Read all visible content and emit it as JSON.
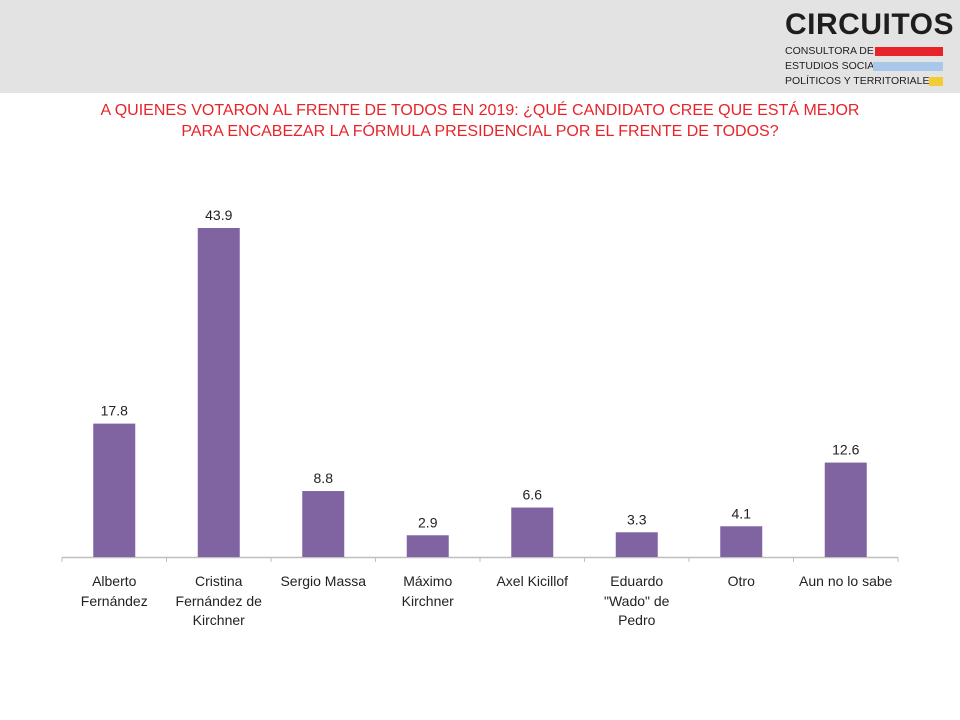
{
  "header": {
    "brand_name": "CIRCUITOS",
    "tagline_lines": [
      "CONSULTORA DE",
      "ESTUDIOS SOCIALES,",
      "POLÍTICOS Y TERRITORIALES"
    ]
  },
  "colors": {
    "bar": "#8064a2",
    "title": "#e8232a",
    "header_bg": "#e3e3e3",
    "stripe_red": "#e8232a",
    "stripe_blue": "#a8c8ea",
    "stripe_yellow": "#f2cc35",
    "axis": "#bfbfbf"
  },
  "chart_data": {
    "type": "bar",
    "title_lines": [
      "A QUIENES VOTARON AL FRENTE DE TODOS EN 2019: ¿QUÉ CANDIDATO CREE QUE ESTÁ MEJOR",
      "PARA ENCABEZAR LA FÓRMULA PRESIDENCIAL POR EL FRENTE DE TODOS?"
    ],
    "categories": [
      [
        "Alberto",
        "Fernández"
      ],
      [
        "Cristina",
        "Fernández de",
        "Kirchner"
      ],
      [
        "Sergio Massa"
      ],
      [
        "Máximo",
        "Kirchner"
      ],
      [
        "Axel Kicillof"
      ],
      [
        "Eduardo",
        "\"Wado\" de",
        "Pedro"
      ],
      [
        "Otro"
      ],
      [
        "Aun no lo sabe"
      ]
    ],
    "values": [
      17.8,
      43.9,
      8.8,
      2.9,
      6.6,
      3.3,
      4.1,
      12.6
    ],
    "value_labels": [
      "17.8",
      "43.9",
      "8.8",
      "2.9",
      "6.6",
      "3.3",
      "4.1",
      "12.6"
    ],
    "xlabel": "",
    "ylabel": "",
    "ylim": [
      0,
      43.9
    ],
    "grid": false,
    "legend": "none"
  }
}
